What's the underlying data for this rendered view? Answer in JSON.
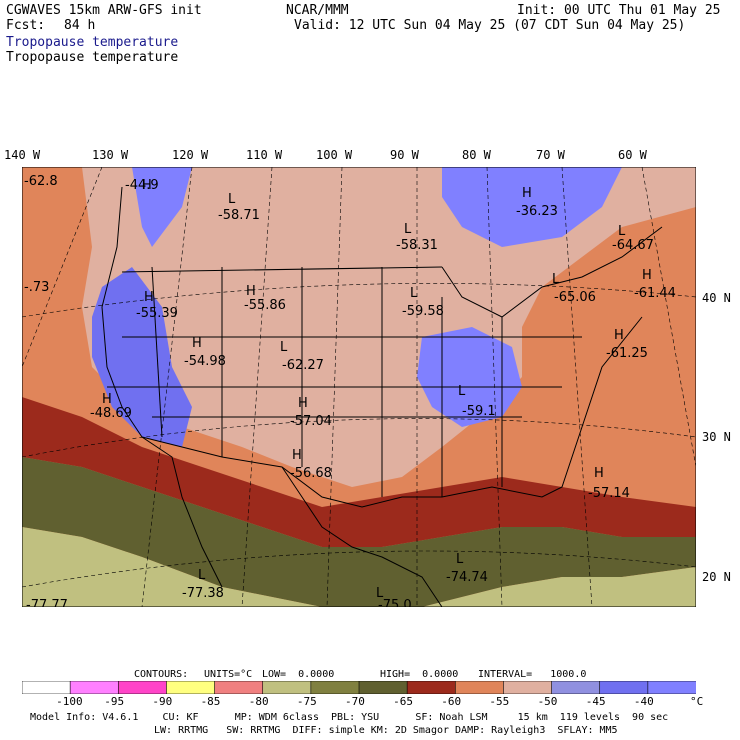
{
  "header": {
    "model": "CGWAVES 15km ARW-GFS init",
    "forecast_label": "Fcst:",
    "forecast_hours": "84 h",
    "center": "NCAR/MMM",
    "init": "Init: 00 UTC Thu 01 May 25",
    "valid": "Valid: 12 UTC Sun 04 May 25 (07 CDT Sun 04 May 25)",
    "field_title_1": "Tropopause temperature",
    "field_title_2": "Tropopause temperature",
    "field_title_1_color": "#1a1a8c"
  },
  "longitude_labels": [
    "140 W",
    "130 W",
    "120 W",
    "110 W",
    "100 W",
    "90 W",
    "80 W",
    "70 W",
    "60 W"
  ],
  "latitude_labels": [
    "40 N",
    "30 N",
    "20 N"
  ],
  "map_annotations": {
    "highs": [
      {
        "label": "H",
        "value": "-44.9"
      },
      {
        "label": "H",
        "value": "-36.23"
      },
      {
        "label": "H",
        "value": "-61.44"
      },
      {
        "label": "H",
        "value": "-61.25"
      },
      {
        "label": "H",
        "value": "-55.39"
      },
      {
        "label": "H",
        "value": "-54.98"
      },
      {
        "label": "H",
        "value": "-48.69"
      },
      {
        "label": "H",
        "value": "-57.04"
      },
      {
        "label": "H",
        "value": "-56.68"
      },
      {
        "label": "H",
        "value": "-57.14"
      },
      {
        "label": "H",
        "value": "-55.86"
      }
    ],
    "lows": [
      {
        "label": "L",
        "value": "-58.71"
      },
      {
        "label": "L",
        "value": "-58.31"
      },
      {
        "label": "L",
        "value": "-64.67"
      },
      {
        "label": "L",
        "value": "-65.06"
      },
      {
        "label": "L",
        "value": "-59.58"
      },
      {
        "label": "L",
        "value": "-62.27"
      },
      {
        "label": "L",
        "value": "-59.1"
      },
      {
        "label": "L",
        "value": "-74.74"
      },
      {
        "label": "L",
        "value": "-77.38"
      },
      {
        "label": "L",
        "value": "-75.0"
      }
    ],
    "edge_values": [
      "-62.8",
      "-.73",
      "-77.77"
    ]
  },
  "contours_line": {
    "contours": "CONTOURS:",
    "units": "UNITS=°C",
    "low": "LOW=  0.0000",
    "high": "HIGH=  0.0000",
    "interval": "INTERVAL=   1000.0"
  },
  "colorbar": {
    "colors": [
      "#ffffff",
      "#ff80ff",
      "#ff44c8",
      "#ffff80",
      "#f08080",
      "#c0c080",
      "#808040",
      "#606030",
      "#9c2a1c",
      "#e0855a",
      "#e0b0a0",
      "#9090e0",
      "#7070f0",
      "#8080ff"
    ],
    "ticks": [
      "-100",
      "-95",
      "-90",
      "-85",
      "-80",
      "-75",
      "-70",
      "-65",
      "-60",
      "-55",
      "-50",
      "-45",
      "-40"
    ],
    "unit": "°C"
  },
  "footer": {
    "line1": "Model Info: V4.6.1    CU: KF      MP: WDM 6class  PBL: YSU      SF: Noah LSM     15 km  119 levels  90 sec",
    "line2": "LW: RRTMG   SW: RRTMG  DIFF: simple KM: 2D Smagor DAMP: Rayleigh3  SFLAY: MM5"
  }
}
